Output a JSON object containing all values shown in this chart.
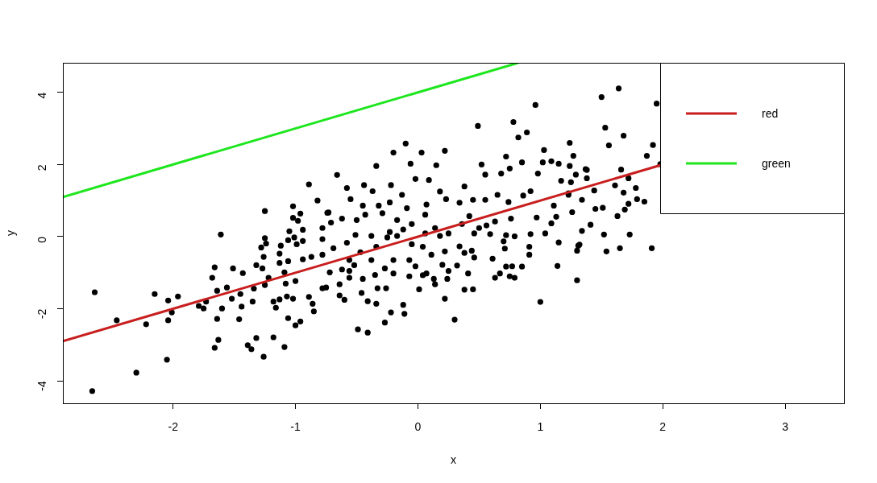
{
  "chart_data": {
    "type": "scatter",
    "xlabel": "x",
    "ylabel": "y",
    "xlim": [
      -2.9,
      3.48
    ],
    "ylim": [
      -4.62,
      4.82
    ],
    "xticks": [
      -2,
      -1,
      0,
      1,
      2,
      3
    ],
    "yticks": [
      -4,
      -2,
      0,
      2,
      4
    ],
    "legend": "top right",
    "series": [
      {
        "color": "#000000",
        "marker": "circle",
        "x": [
          -2.64,
          -2.66,
          -2.46,
          -2.3,
          -2.22,
          -2.15,
          -2.04,
          -2.04,
          -2.05,
          -1.96,
          -2.01,
          -1.79,
          -1.73,
          -1.75,
          -1.68,
          -1.66,
          -1.64,
          -1.64,
          -1.66,
          -1.63,
          -1.61,
          -1.6,
          -1.56,
          -1.52,
          -1.51,
          -1.45,
          -1.44,
          -1.46,
          -1.43,
          -1.39,
          -1.36,
          -1.35,
          -1.34,
          -1.32,
          -1.26,
          -1.32,
          -1.27,
          -1.25,
          -1.25,
          -1.24,
          -1.28,
          -1.26,
          -1.25,
          -1.22,
          -1.18,
          -1.16,
          -1.18,
          -1.13,
          -1.12,
          -1.13,
          -1.13,
          -1.09,
          -1.08,
          -1.07,
          -1.06,
          -1.09,
          -1.06,
          -1.06,
          -1.05,
          -1.02,
          -1.02,
          -0.98,
          -0.96,
          -1.01,
          -0.99,
          -0.94,
          -0.94,
          -0.94,
          -1,
          -1.02,
          -1,
          -0.96,
          -0.89,
          -0.86,
          -0.85,
          -0.87,
          -0.82,
          -0.78,
          -0.78,
          -0.78,
          -0.78,
          -0.74,
          -0.89,
          -0.66,
          -0.34,
          -0.2,
          -0.1,
          -0.06,
          0.03,
          0.15,
          0.22,
          0.52,
          0.72,
          0.82,
          0.89,
          1.03,
          1.24,
          1.27,
          1.02,
          1.09,
          1.15,
          0.85,
          0.75,
          0.68,
          0.55,
          0.98,
          1.17,
          1.29,
          1.37,
          -0.58,
          -0.44,
          -0.55,
          -0.37,
          -0.22,
          -0.02,
          0.09,
          0.18,
          0.38,
          0.23,
          -0.73,
          -0.45,
          -0.32,
          -0.23,
          -0.13,
          -0.09,
          0.07,
          0.34,
          0.45,
          0.55,
          0.65,
          0.74,
          0.86,
          0.92,
          1.11,
          1.23,
          1.34,
          1.26,
          1.13,
          1.09,
          0.97,
          1.34,
          1.04,
          0.92,
          0.76,
          0.63,
          0.56,
          0.79,
          0.72,
          0.59,
          1.15,
          1.32,
          1.3,
          0.91,
          0.91,
          0.7,
          0.71,
          0.61,
          0.72,
          0.77,
          0.85,
          1.14,
          0.63,
          0.67,
          0.75,
          0.79,
          1.3,
          1,
          0.3,
          0.22,
          0.38,
          0.45,
          0.46,
          0.44,
          0.38,
          0.34,
          0.41,
          0.32,
          0.25,
          0.24,
          0.2,
          0.22,
          0.13,
          0.14,
          0.07,
          0.01,
          0.04,
          -0.02,
          -0.07,
          -0.12,
          -0.11,
          -0.22,
          -0.27,
          -0.41,
          -0.49,
          -0.34,
          -0.41,
          -0.46,
          -0.6,
          -0.64,
          -0.75,
          -0.64,
          -0.56,
          -0.45,
          -0.33,
          -0.26,
          -0.2,
          -0.27,
          -0.35,
          -0.72,
          -0.62,
          -0.56,
          -0.52,
          -0.56,
          -0.38,
          -0.2,
          -0.07,
          -0.23,
          -0.38,
          -0.51,
          -0.58,
          -0.69,
          -0.71,
          -0.62,
          -0.5,
          -0.43,
          -0.29,
          -0.17,
          -0.05,
          -0.12,
          0.06,
          0.14,
          0.25,
          0.36,
          0.42,
          0.5,
          0.46,
          -0.05,
          0.04,
          0.11,
          0.18,
          0.06,
          -0.17,
          -0.25,
          -0.34,
          -0.47,
          1.64,
          1.5,
          1.95,
          1.53,
          1.68,
          1.56,
          1.92,
          1.87,
          1.24,
          1.38,
          1.66,
          1.38,
          1.72,
          1.25,
          1.61,
          1.78,
          1.44,
          1.68,
          1.23,
          1.79,
          1.85,
          1.72,
          1.69,
          1.51,
          1.45,
          1.63,
          1.41,
          1.52,
          1.73,
          1.31,
          1.54,
          1.65,
          1.91,
          1.98,
          0.96,
          0.78,
          0.49
        ],
        "values": [
          -1.54,
          -4.28,
          -2.32,
          -3.77,
          -2.43,
          -1.59,
          -1.77,
          -2.32,
          -3.41,
          -1.66,
          -2.1,
          -1.92,
          -1.8,
          -1.99,
          -1.14,
          -0.85,
          -1.5,
          -2.28,
          -3.08,
          -2.86,
          0.06,
          -1.99,
          -1.41,
          -1.72,
          -0.88,
          -1.59,
          -1.94,
          -2.29,
          -1.01,
          -3.01,
          -3.12,
          -1.8,
          -1.44,
          -2.81,
          -3.33,
          -0.79,
          -0.88,
          0.71,
          -0.04,
          -0.19,
          -0.3,
          -0.56,
          -1.34,
          -1.14,
          -1.8,
          -1.97,
          -2.79,
          -1.74,
          -0.25,
          -0.47,
          -0.73,
          -0.99,
          -1.3,
          -1.66,
          -2.26,
          -3.06,
          -0.1,
          -0.68,
          0.15,
          0.84,
          0.52,
          0.44,
          0.64,
          -0.02,
          -0.21,
          0.19,
          -0.12,
          -0.63,
          -1.23,
          -1.72,
          -2.46,
          -2.35,
          -1.67,
          -1.86,
          -2.07,
          -0.56,
          1,
          0.24,
          -0.07,
          -0.5,
          -1.43,
          0.66,
          1.45,
          1.71,
          1.96,
          2.33,
          2.58,
          2.02,
          2.33,
          1.98,
          2.38,
          2,
          2.22,
          2.75,
          2.89,
          2.4,
          2.6,
          2.24,
          2.06,
          2.09,
          2.02,
          2.06,
          1.89,
          1.75,
          1.72,
          1.75,
          1.55,
          1.72,
          1.87,
          1.35,
          1.43,
          1.04,
          1.26,
          1.43,
          1.6,
          1.57,
          1.25,
          1.39,
          1.04,
          0.67,
          0.86,
          0.86,
          0.95,
          1.16,
          0.79,
          0.89,
          0.94,
          1.02,
          1.02,
          1.16,
          0.96,
          1.14,
          1.26,
          0.86,
          1.16,
          1.02,
          0.68,
          0.55,
          0.37,
          0.53,
          0.16,
          0.09,
          0.07,
          0.5,
          0.42,
          0.31,
          0.01,
          0.04,
          0.07,
          -0.16,
          -0.22,
          -0.39,
          -0.5,
          -0.28,
          -0.13,
          -0.33,
          -0.61,
          -0.83,
          -0.82,
          -0.83,
          -0.81,
          -1.14,
          -1.02,
          -1.1,
          -1.14,
          -1.21,
          -1.81,
          -2.3,
          -1.72,
          -1.47,
          -1.46,
          -0.58,
          -0.39,
          -0.45,
          -0.27,
          -1.02,
          -0.8,
          -0.95,
          -1.17,
          -0.78,
          -0.41,
          -1.17,
          -1.32,
          -1.02,
          -1.46,
          -1.07,
          -0.82,
          -1.1,
          -1.89,
          -2.14,
          -2.1,
          -2.38,
          -2.66,
          -2.57,
          -1.86,
          -1.79,
          -1.56,
          -1.75,
          -1.63,
          -1.41,
          -1.32,
          -1.14,
          -1.17,
          -1.43,
          -1.43,
          -1.02,
          -0.88,
          -1.06,
          -0.99,
          -0.91,
          -0.95,
          -0.79,
          -0.65,
          -0.65,
          -0.65,
          -0.65,
          0.13,
          0.02,
          0.05,
          -0.17,
          -0.32,
          0.39,
          0.5,
          0.46,
          0.61,
          0.65,
          0.46,
          0.35,
          0.2,
          0.61,
          0.24,
          0.09,
          0.35,
          0.57,
          0.24,
          0.09,
          -0.21,
          -0.28,
          -0.5,
          0.02,
          0.09,
          0.02,
          -0.02,
          -0.28,
          -0.43,
          4.11,
          3.87,
          3.69,
          3.02,
          2.8,
          2.53,
          2.54,
          2.24,
          1.96,
          1.85,
          1.86,
          1.62,
          1.62,
          1.51,
          1.42,
          1.35,
          1.28,
          1.22,
          1.2,
          1.04,
          0.97,
          0.91,
          0.75,
          0.8,
          0.77,
          0.57,
          0.33,
          0.06,
          0.06,
          -0.25,
          -0.41,
          -0.32,
          -0.32,
          2.01,
          3.65,
          3.18,
          3.07
        ]
      },
      {
        "type": "line",
        "name": "red",
        "color": "#c81e1e",
        "marker": "none",
        "x": [
          -2.9,
          1.98
        ],
        "values": [
          -2.9,
          1.98
        ]
      },
      {
        "type": "line",
        "name": "green",
        "color": "#1ee61e",
        "marker": "none",
        "x": [
          -2.9,
          0.82
        ],
        "values": [
          1.1,
          4.82
        ]
      }
    ]
  }
}
